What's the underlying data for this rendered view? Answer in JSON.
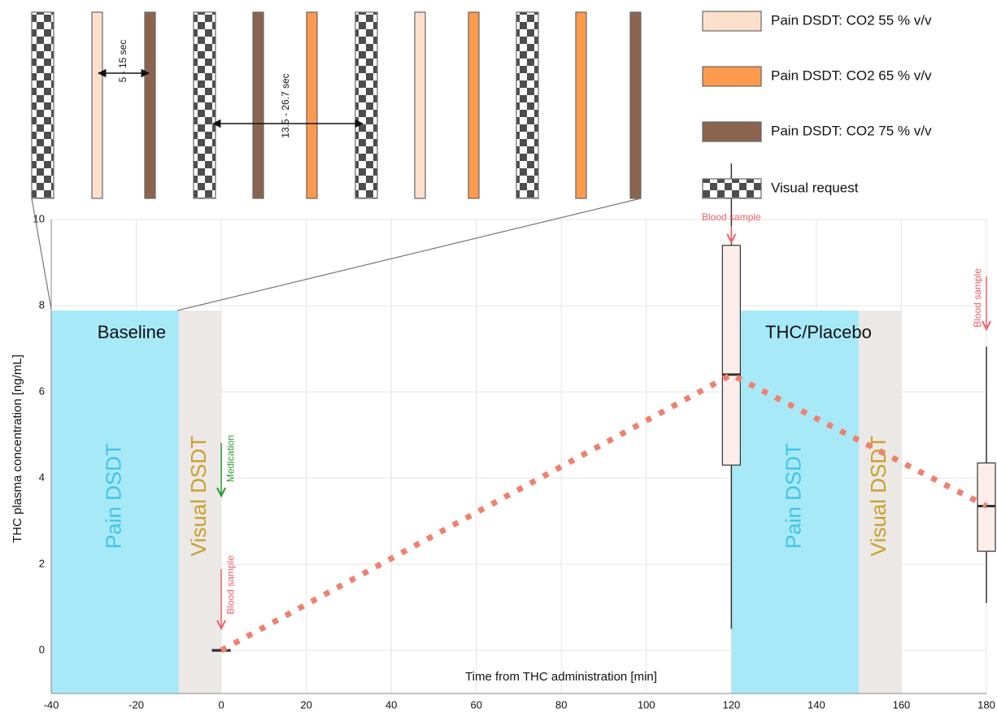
{
  "chart_data": {
    "type": "box",
    "x_label": "Time from THC administration [min]",
    "y_label": "THC plasma concentration [ng/mL]",
    "xlim": [
      -40,
      180
    ],
    "ylim": [
      -1,
      10
    ],
    "xticks": [
      -40,
      -20,
      0,
      20,
      40,
      60,
      80,
      100,
      120,
      140,
      160,
      180
    ],
    "yticks": [
      0,
      2,
      4,
      6,
      8,
      10
    ],
    "grid": true,
    "boxes": {
      "x": [
        0,
        120,
        180
      ],
      "low": [
        0,
        0.5,
        1.1
      ],
      "q1": [
        -0.02,
        4.3,
        2.3
      ],
      "median": [
        0,
        6.4,
        3.35
      ],
      "q3": [
        0.02,
        9.4,
        4.35
      ],
      "high": [
        0,
        11.3,
        7.05
      ],
      "color": "#fbeeea"
    },
    "line": {
      "x": [
        0,
        120,
        180
      ],
      "values": [
        0,
        6.4,
        3.35
      ],
      "color": "#f0806e"
    },
    "phases": [
      {
        "label": "Pain DSDT",
        "start": -40,
        "end": -10,
        "color": "#a8e9f8",
        "text_color": "#3ec3ee"
      },
      {
        "label": "Visual DSDT",
        "start": -10,
        "end": 0,
        "color": "#ebe8e5",
        "text_color": "#c9a02a"
      },
      {
        "label": "Pain DSDT",
        "start": 120,
        "end": 150,
        "color": "#a8e9f8",
        "text_color": "#3ec3ee"
      },
      {
        "label": "Visual DSDT",
        "start": 150,
        "end": 160,
        "color": "#ebe8e5",
        "text_color": "#c9a02a"
      }
    ],
    "phase_groups": [
      "Baseline",
      "THC/Placebo"
    ],
    "annotations": [
      {
        "label": "Medication",
        "x": 0,
        "color": "#2e9a2e"
      },
      {
        "label": "Blood sample",
        "x": 0,
        "color": "#f0606a"
      },
      {
        "label": "Blood sample",
        "x": 120,
        "color": "#f0606a"
      },
      {
        "label": "Blood sample",
        "x": 180,
        "color": "#f0606a"
      }
    ],
    "legend": [
      {
        "label": "Pain DSDT: CO2 55 % v/v",
        "color": "#fde0cc"
      },
      {
        "label": "Pain DSDT: CO2 65 % v/v",
        "color": "#fd9a4e"
      },
      {
        "label": "Pain DSDT: CO2 75 % v/v",
        "color": "#8b6450"
      },
      {
        "label": "Visual request",
        "color": "checker"
      }
    ],
    "sequence": [
      3,
      0,
      2,
      3,
      2,
      1,
      3,
      0,
      1,
      3,
      1,
      2
    ],
    "intervals": [
      "5 - 15 sec",
      "13.5 - 26.7 sec"
    ]
  }
}
